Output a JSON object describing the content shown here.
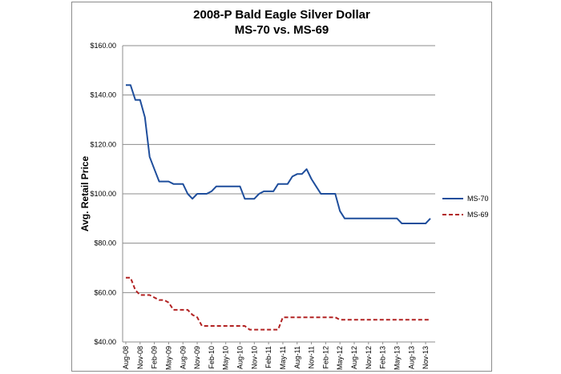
{
  "chart_data": {
    "type": "line",
    "title": "2008-P Bald Eagle Silver Dollar",
    "subtitle": "MS-70 vs. MS-69",
    "xlabel": "",
    "ylabel": "Avg. Retail Price",
    "ylim": [
      40,
      160
    ],
    "yticks": [
      "$40.00",
      "$60.00",
      "$80.00",
      "$100.00",
      "$120.00",
      "$140.00",
      "$160.00"
    ],
    "ytick_values": [
      40,
      60,
      80,
      100,
      120,
      140,
      160
    ],
    "xticks": [
      "Aug-08",
      "Nov-08",
      "Feb-09",
      "May-09",
      "Aug-09",
      "Nov-09",
      "Feb-10",
      "May-10",
      "Aug-10",
      "Nov-10",
      "Feb-11",
      "May-11",
      "Aug-11",
      "Nov-11",
      "Feb-12",
      "May-12",
      "Aug-12",
      "Nov-12",
      "Feb-13",
      "May-13",
      "Aug-13",
      "Nov-13"
    ],
    "grid": true,
    "legend_position": "right",
    "x": [
      "Aug-08",
      "Sep-08",
      "Oct-08",
      "Nov-08",
      "Dec-08",
      "Jan-09",
      "Feb-09",
      "Mar-09",
      "Apr-09",
      "May-09",
      "Jun-09",
      "Jul-09",
      "Aug-09",
      "Sep-09",
      "Oct-09",
      "Nov-09",
      "Dec-09",
      "Jan-10",
      "Feb-10",
      "Mar-10",
      "Apr-10",
      "May-10",
      "Jun-10",
      "Jul-10",
      "Aug-10",
      "Sep-10",
      "Oct-10",
      "Nov-10",
      "Dec-10",
      "Jan-11",
      "Feb-11",
      "Mar-11",
      "Apr-11",
      "May-11",
      "Jun-11",
      "Jul-11",
      "Aug-11",
      "Sep-11",
      "Oct-11",
      "Nov-11",
      "Dec-11",
      "Jan-12",
      "Feb-12",
      "Mar-12",
      "Apr-12",
      "May-12",
      "Jun-12",
      "Jul-12",
      "Aug-12",
      "Sep-12",
      "Oct-12",
      "Nov-12",
      "Dec-12",
      "Jan-13",
      "Feb-13",
      "Mar-13",
      "Apr-13",
      "May-13",
      "Jun-13",
      "Jul-13",
      "Aug-13",
      "Sep-13",
      "Oct-13",
      "Nov-13",
      "Dec-13"
    ],
    "series": [
      {
        "name": "MS-70",
        "color": "#1f4e9c",
        "style": "solid",
        "values": [
          144,
          144,
          138,
          138,
          131,
          115,
          110,
          105,
          105,
          105,
          104,
          104,
          104,
          100,
          98,
          100,
          100,
          100,
          101,
          103,
          103,
          103,
          103,
          103,
          103,
          98,
          98,
          98,
          100,
          101,
          101,
          101,
          104,
          104,
          104,
          107,
          108,
          108,
          110,
          106,
          103,
          100,
          100,
          100,
          100,
          93,
          90,
          90,
          90,
          90,
          90,
          90,
          90,
          90,
          90,
          90,
          90,
          90,
          88,
          88,
          88,
          88,
          88,
          88,
          90
        ]
      },
      {
        "name": "MS-69",
        "color": "#b22222",
        "style": "dashed",
        "values": [
          66,
          66,
          61,
          59,
          59,
          59,
          58,
          57,
          57,
          56,
          53,
          53,
          53,
          53,
          51,
          50,
          46.5,
          46.5,
          46.5,
          46.5,
          46.5,
          46.5,
          46.5,
          46.5,
          46.5,
          46.5,
          45,
          45,
          45,
          45,
          45,
          45,
          45,
          50,
          50,
          50,
          50,
          50,
          50,
          50,
          50,
          50,
          50,
          50,
          50,
          49,
          49,
          49,
          49,
          49,
          49,
          49,
          49,
          49,
          49,
          49,
          49,
          49,
          49,
          49,
          49,
          49,
          49,
          49,
          49
        ]
      }
    ]
  }
}
